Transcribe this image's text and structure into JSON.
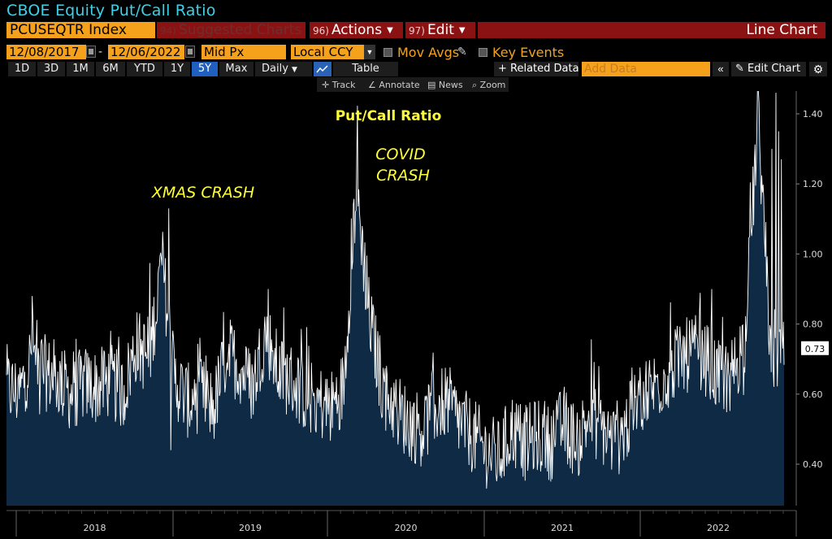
{
  "window": {
    "title": "CBOE Equity Put/Call Ratio"
  },
  "toolbar": {
    "ticker": "PCUSEQTR Index",
    "suggested_num": "94)",
    "suggested_label": "Suggested Charts",
    "actions_num": "96)",
    "actions_label": "Actions",
    "edit_num": "97)",
    "edit_label": "Edit",
    "chart_type": "Line Chart"
  },
  "settings": {
    "start_date": "12/08/2017",
    "end_date": "12/06/2022",
    "price_field": "Mid Px",
    "currency": "Local CCY",
    "mov_avgs": "Mov Avgs",
    "key_events": "Key Events",
    "date_separator": "-"
  },
  "periods": {
    "p1d": "1D",
    "p3d": "3D",
    "p1m": "1M",
    "p6m": "6M",
    "pytd": "YTD",
    "p1y": "1Y",
    "p5y": "5Y",
    "pmax": "Max",
    "frequency": "Daily",
    "table": "Table",
    "related": "+ Related Data",
    "add_data_placeholder": "Add Data",
    "collapse": "«",
    "edit_chart": "Edit Chart",
    "gear": "⚙"
  },
  "tools": {
    "track": "Track",
    "annotate": "Annotate",
    "news": "News",
    "zoom": "Zoom"
  },
  "colors": {
    "accent_orange": "#f6a11b",
    "title_cyan": "#3fd0e8",
    "red_bar": "#8b1212",
    "area_fill": "#0f2a44",
    "line": "#ffffff",
    "annotation": "#ffff33",
    "active_blue": "#1f5fbf"
  },
  "chart_data": {
    "type": "area",
    "title": "Put/Call Ratio",
    "y_ticks": [
      "1.40",
      "1.20",
      "1.00",
      "0.80",
      "0.60",
      "0.40"
    ],
    "x_ticks": [
      "2018",
      "2019",
      "2020",
      "2021",
      "2022"
    ],
    "ylim": [
      0.3,
      1.48
    ],
    "last_value": "0.73",
    "annotations": [
      "XMAS CRASH",
      "COVID CRASH"
    ],
    "series": [
      {
        "values_note": "weekly samples approximated",
        "x": [
          "2017-12",
          "2018-01",
          "2018-02",
          "2018-03",
          "2018-04",
          "2018-05",
          "2018-06",
          "2018-07",
          "2018-08",
          "2018-09",
          "2018-10",
          "2018-11",
          "2018-12",
          "2019-01",
          "2019-02",
          "2019-03",
          "2019-04",
          "2019-05",
          "2019-06",
          "2019-07",
          "2019-08",
          "2019-09",
          "2019-10",
          "2019-11",
          "2019-12",
          "2020-01",
          "2020-02",
          "2020-03",
          "2020-04",
          "2020-05",
          "2020-06",
          "2020-07",
          "2020-08",
          "2020-09",
          "2020-10",
          "2020-11",
          "2020-12",
          "2021-01",
          "2021-02",
          "2021-03",
          "2021-04",
          "2021-05",
          "2021-06",
          "2021-07",
          "2021-08",
          "2021-09",
          "2021-10",
          "2021-11",
          "2021-12",
          "2022-01",
          "2022-02",
          "2022-03",
          "2022-04",
          "2022-05",
          "2022-06",
          "2022-07",
          "2022-08",
          "2022-09",
          "2022-10",
          "2022-11",
          "2022-12"
        ],
        "values": [
          0.62,
          0.6,
          0.72,
          0.66,
          0.64,
          0.6,
          0.63,
          0.62,
          0.64,
          0.6,
          0.74,
          0.7,
          0.98,
          0.64,
          0.58,
          0.6,
          0.56,
          0.72,
          0.68,
          0.62,
          0.78,
          0.66,
          0.64,
          0.6,
          0.58,
          0.56,
          0.62,
          1.2,
          0.82,
          0.62,
          0.56,
          0.52,
          0.5,
          0.56,
          0.58,
          0.52,
          0.48,
          0.44,
          0.42,
          0.5,
          0.46,
          0.48,
          0.46,
          0.52,
          0.46,
          0.54,
          0.5,
          0.46,
          0.52,
          0.6,
          0.62,
          0.66,
          0.7,
          0.72,
          0.7,
          0.64,
          0.66,
          0.76,
          1.4,
          0.7,
          0.73
        ]
      }
    ]
  }
}
